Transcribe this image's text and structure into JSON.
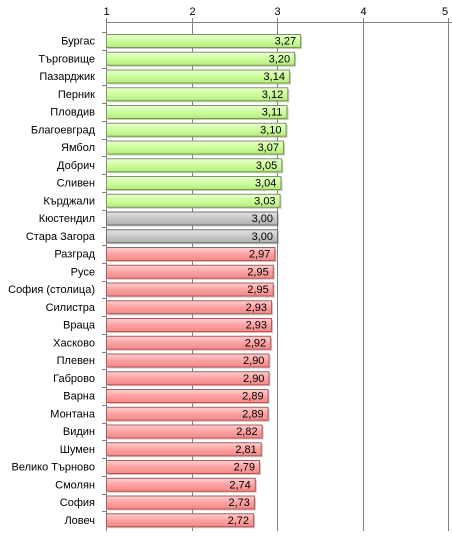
{
  "chart_data": {
    "type": "bar",
    "orientation": "horizontal",
    "title": "",
    "xlabel": "",
    "ylabel": "",
    "xlim": [
      1,
      5
    ],
    "x_ticks": [
      "1",
      "2",
      "3",
      "4",
      "5"
    ],
    "grid": "vertical",
    "categories": [
      "Бургас",
      "Търговище",
      "Пазарджик",
      "Перник",
      "Пловдив",
      "Благоевград",
      "Ямбол",
      "Добрич",
      "Сливен",
      "Кърджали",
      "Кюстендил",
      "Стара Загора",
      "Разград",
      "Русе",
      "София (столица)",
      "Силистра",
      "Враца",
      "Хасково",
      "Плевен",
      "Габрово",
      "Варна",
      "Монтана",
      "Видин",
      "Шумен",
      "Велико Търново",
      "Смолян",
      "София",
      "Ловеч"
    ],
    "values": [
      3.27,
      3.2,
      3.14,
      3.12,
      3.11,
      3.1,
      3.07,
      3.05,
      3.04,
      3.03,
      3.0,
      3.0,
      2.97,
      2.95,
      2.95,
      2.93,
      2.93,
      2.92,
      2.9,
      2.9,
      2.89,
      2.89,
      2.82,
      2.81,
      2.79,
      2.74,
      2.73,
      2.72
    ],
    "value_labels": [
      "3,27",
      "3,20",
      "3,14",
      "3,12",
      "3,11",
      "3,10",
      "3,07",
      "3,05",
      "3,04",
      "3,03",
      "3,00",
      "3,00",
      "2,97",
      "2,95",
      "2,95",
      "2,93",
      "2,93",
      "2,92",
      "2,90",
      "2,90",
      "2,89",
      "2,89",
      "2,82",
      "2,81",
      "2,79",
      "2,74",
      "2,73",
      "2,72"
    ],
    "colors": {
      "above": "#ccff99",
      "equal": "#c0c0c0",
      "below": "#ff9999",
      "grid": "#808080",
      "axis": "#808080"
    }
  }
}
